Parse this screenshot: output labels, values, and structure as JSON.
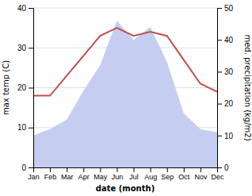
{
  "chart_data": {
    "type": "line",
    "xlabel": "date (month)",
    "ylabel": "max temp (C)",
    "y2label": "med. precipitation (kg/m2)",
    "categories": [
      "Jan",
      "Feb",
      "Mar",
      "Apr",
      "May",
      "Jun",
      "Jul",
      "Aug",
      "Sep",
      "Oct",
      "Nov",
      "Dec"
    ],
    "series": [
      {
        "type": "line",
        "color": "#c0504d",
        "values": [
          18,
          18,
          23,
          28,
          33,
          35,
          33,
          34,
          33,
          27,
          21,
          19
        ]
      },
      {
        "type": "area",
        "color": "#c5cef0",
        "axis": "y2",
        "values": [
          10,
          12,
          15,
          24,
          32,
          46,
          40,
          44,
          33,
          17,
          12,
          11
        ]
      }
    ],
    "ylim": [
      0,
      40
    ],
    "yticks": [
      0,
      10,
      20,
      30,
      40
    ],
    "y2lim": [
      0,
      50
    ],
    "y2ticks": [
      0,
      10,
      20,
      30,
      40,
      50
    ],
    "grid": true
  }
}
